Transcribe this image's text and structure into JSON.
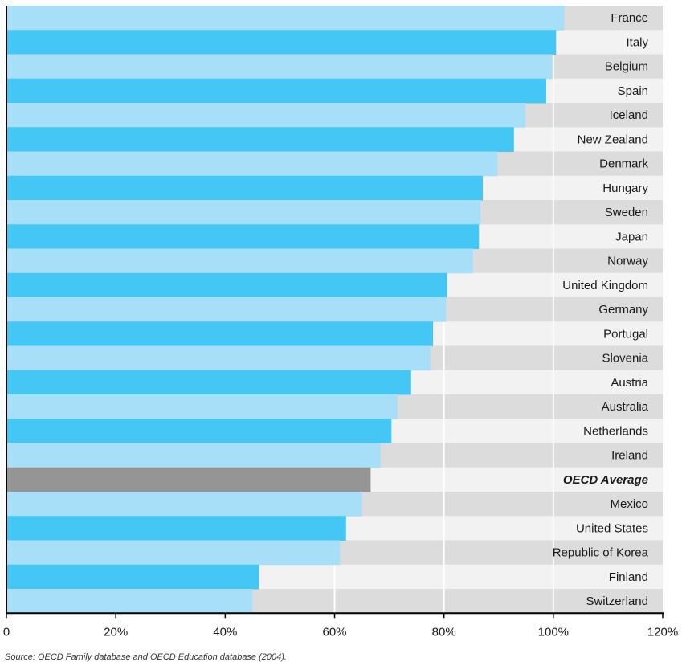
{
  "chart_data": {
    "type": "bar",
    "orientation": "horizontal",
    "categories": [
      "France",
      "Italy",
      "Belgium",
      "Spain",
      "Iceland",
      "New Zealand",
      "Denmark",
      "Hungary",
      "Sweden",
      "Japan",
      "Norway",
      "United Kingdom",
      "Germany",
      "Portugal",
      "Slovenia",
      "Austria",
      "Australia",
      "Netherlands",
      "Ireland",
      "OECD Average",
      "Mexico",
      "United States",
      "Republic of Korea",
      "Finland",
      "Switzerland"
    ],
    "values": [
      102,
      100.5,
      99.8,
      98.7,
      94.9,
      92.8,
      89.8,
      87.1,
      86.7,
      86.4,
      85.3,
      80.6,
      80.4,
      78.0,
      77.5,
      74.0,
      71.5,
      70.4,
      68.4,
      66.6,
      65.0,
      62.1,
      61.0,
      46.2,
      45.0
    ],
    "highlight_category": "OECD Average",
    "xlim": [
      0,
      120
    ],
    "ticks": [
      0,
      20,
      40,
      60,
      80,
      100,
      120
    ],
    "tick_labels": [
      "0",
      "20%",
      "40%",
      "60%",
      "80%",
      "100%",
      "120%"
    ],
    "grid": "vertical",
    "colors": {
      "bar_light": "#a7dff9",
      "bar_dark": "#45c7f5",
      "bar_average": "#959595",
      "row_dark": "#dcdcdc",
      "row_light": "#f2f2f2",
      "gridline": "#ffffff",
      "axis": "#000000"
    }
  },
  "source_note": "Source: OECD Family database and OECD Education database (2004)."
}
